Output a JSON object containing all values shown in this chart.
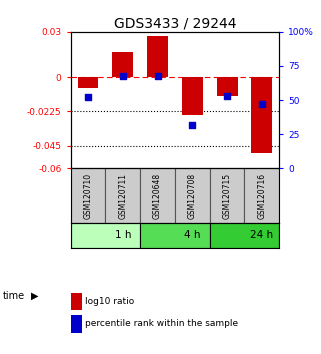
{
  "title": "GDS3433 / 29244",
  "samples": [
    "GSM120710",
    "GSM120711",
    "GSM120648",
    "GSM120708",
    "GSM120715",
    "GSM120716"
  ],
  "log10_ratio": [
    -0.007,
    0.017,
    0.027,
    -0.025,
    -0.012,
    -0.05
  ],
  "percentile_rank": [
    52,
    68,
    68,
    32,
    53,
    47
  ],
  "ylim_left": [
    -0.06,
    0.03
  ],
  "ylim_right": [
    0,
    100
  ],
  "yticks_left": [
    0.03,
    0,
    -0.0225,
    -0.045,
    -0.06
  ],
  "ytick_labels_left": [
    "0.03",
    "0",
    "-0.0225",
    "-0.045",
    "-0.06"
  ],
  "yticks_right": [
    100,
    75,
    50,
    25,
    0
  ],
  "ytick_labels_right": [
    "100%",
    "75",
    "50",
    "25",
    "0"
  ],
  "hline_zero": 0,
  "hline_dotted1": -0.0225,
  "hline_dotted2": -0.045,
  "time_groups": [
    {
      "label": "1 h",
      "start": 0,
      "end": 2,
      "color": "#bbffbb"
    },
    {
      "label": "4 h",
      "start": 2,
      "end": 4,
      "color": "#55dd55"
    },
    {
      "label": "24 h",
      "start": 4,
      "end": 6,
      "color": "#33cc33"
    }
  ],
  "bar_color": "#cc0000",
  "dot_color": "#0000cc",
  "bar_width": 0.6,
  "dot_size": 18,
  "sample_box_color": "#cccccc",
  "sample_box_edge": "#555555",
  "title_fontsize": 10,
  "legend_label_red": "log10 ratio",
  "legend_label_blue": "percentile rank within the sample",
  "time_label": "time"
}
